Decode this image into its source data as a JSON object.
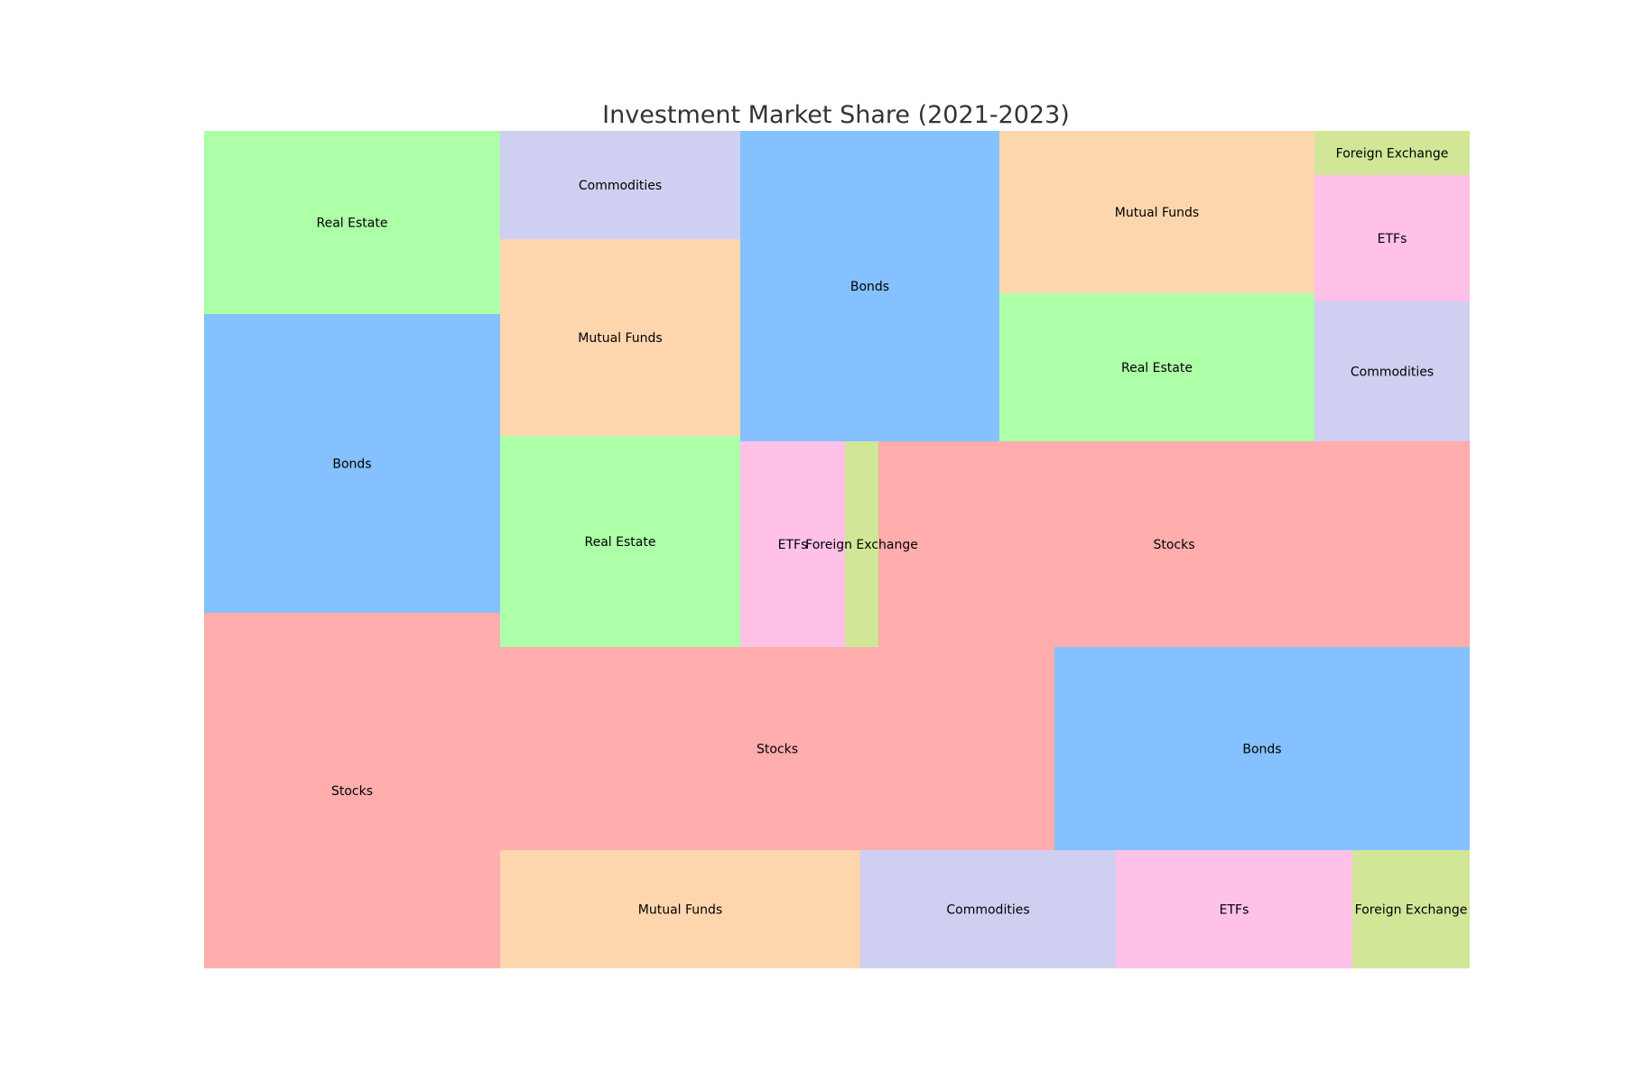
{
  "chart_data": {
    "type": "treemap",
    "title": "Investment Market Share (2021-2023)",
    "colors": {
      "Stocks": "#ffadad",
      "Bonds": "#85c1ff",
      "Real Estate": "#adffa8",
      "Mutual Funds": "#fed6ae",
      "Commodities": "#cfcff1",
      "ETFs": "#ffc1e8",
      "Foreign Exchange": "#d1e797"
    },
    "groups": [
      {
        "items": [
          {
            "label": "Real Estate",
            "value": 50
          },
          {
            "label": "Bonds",
            "value": 82
          },
          {
            "label": "Stocks",
            "value": 97
          }
        ]
      },
      {
        "items": [
          {
            "label": "Commodities",
            "value": 24
          },
          {
            "label": "Mutual Funds",
            "value": 43
          },
          {
            "label": "Real Estate",
            "value": 46
          },
          {
            "label": "ETFs",
            "value": 20
          },
          {
            "label": "Foreign Exchange",
            "value": 6.5
          },
          {
            "label": "Bonds",
            "value": 74
          },
          {
            "label": "Mutual Funds",
            "value": 47
          },
          {
            "label": "Real Estate",
            "value": 43
          },
          {
            "label": "ETFs",
            "value": 18
          },
          {
            "label": "Commodities",
            "value": 20
          },
          {
            "label": "Foreign Exchange",
            "value": 6.5
          },
          {
            "label": "Stocks",
            "value": 112
          }
        ]
      },
      {
        "items": [
          {
            "label": "Stocks",
            "value": 104
          },
          {
            "label": "Bonds",
            "value": 78
          },
          {
            "label": "Mutual Funds",
            "value": 39
          },
          {
            "label": "Commodities",
            "value": 28
          },
          {
            "label": "ETFs",
            "value": 26
          },
          {
            "label": "Foreign Exchange",
            "value": 13
          }
        ]
      }
    ]
  }
}
